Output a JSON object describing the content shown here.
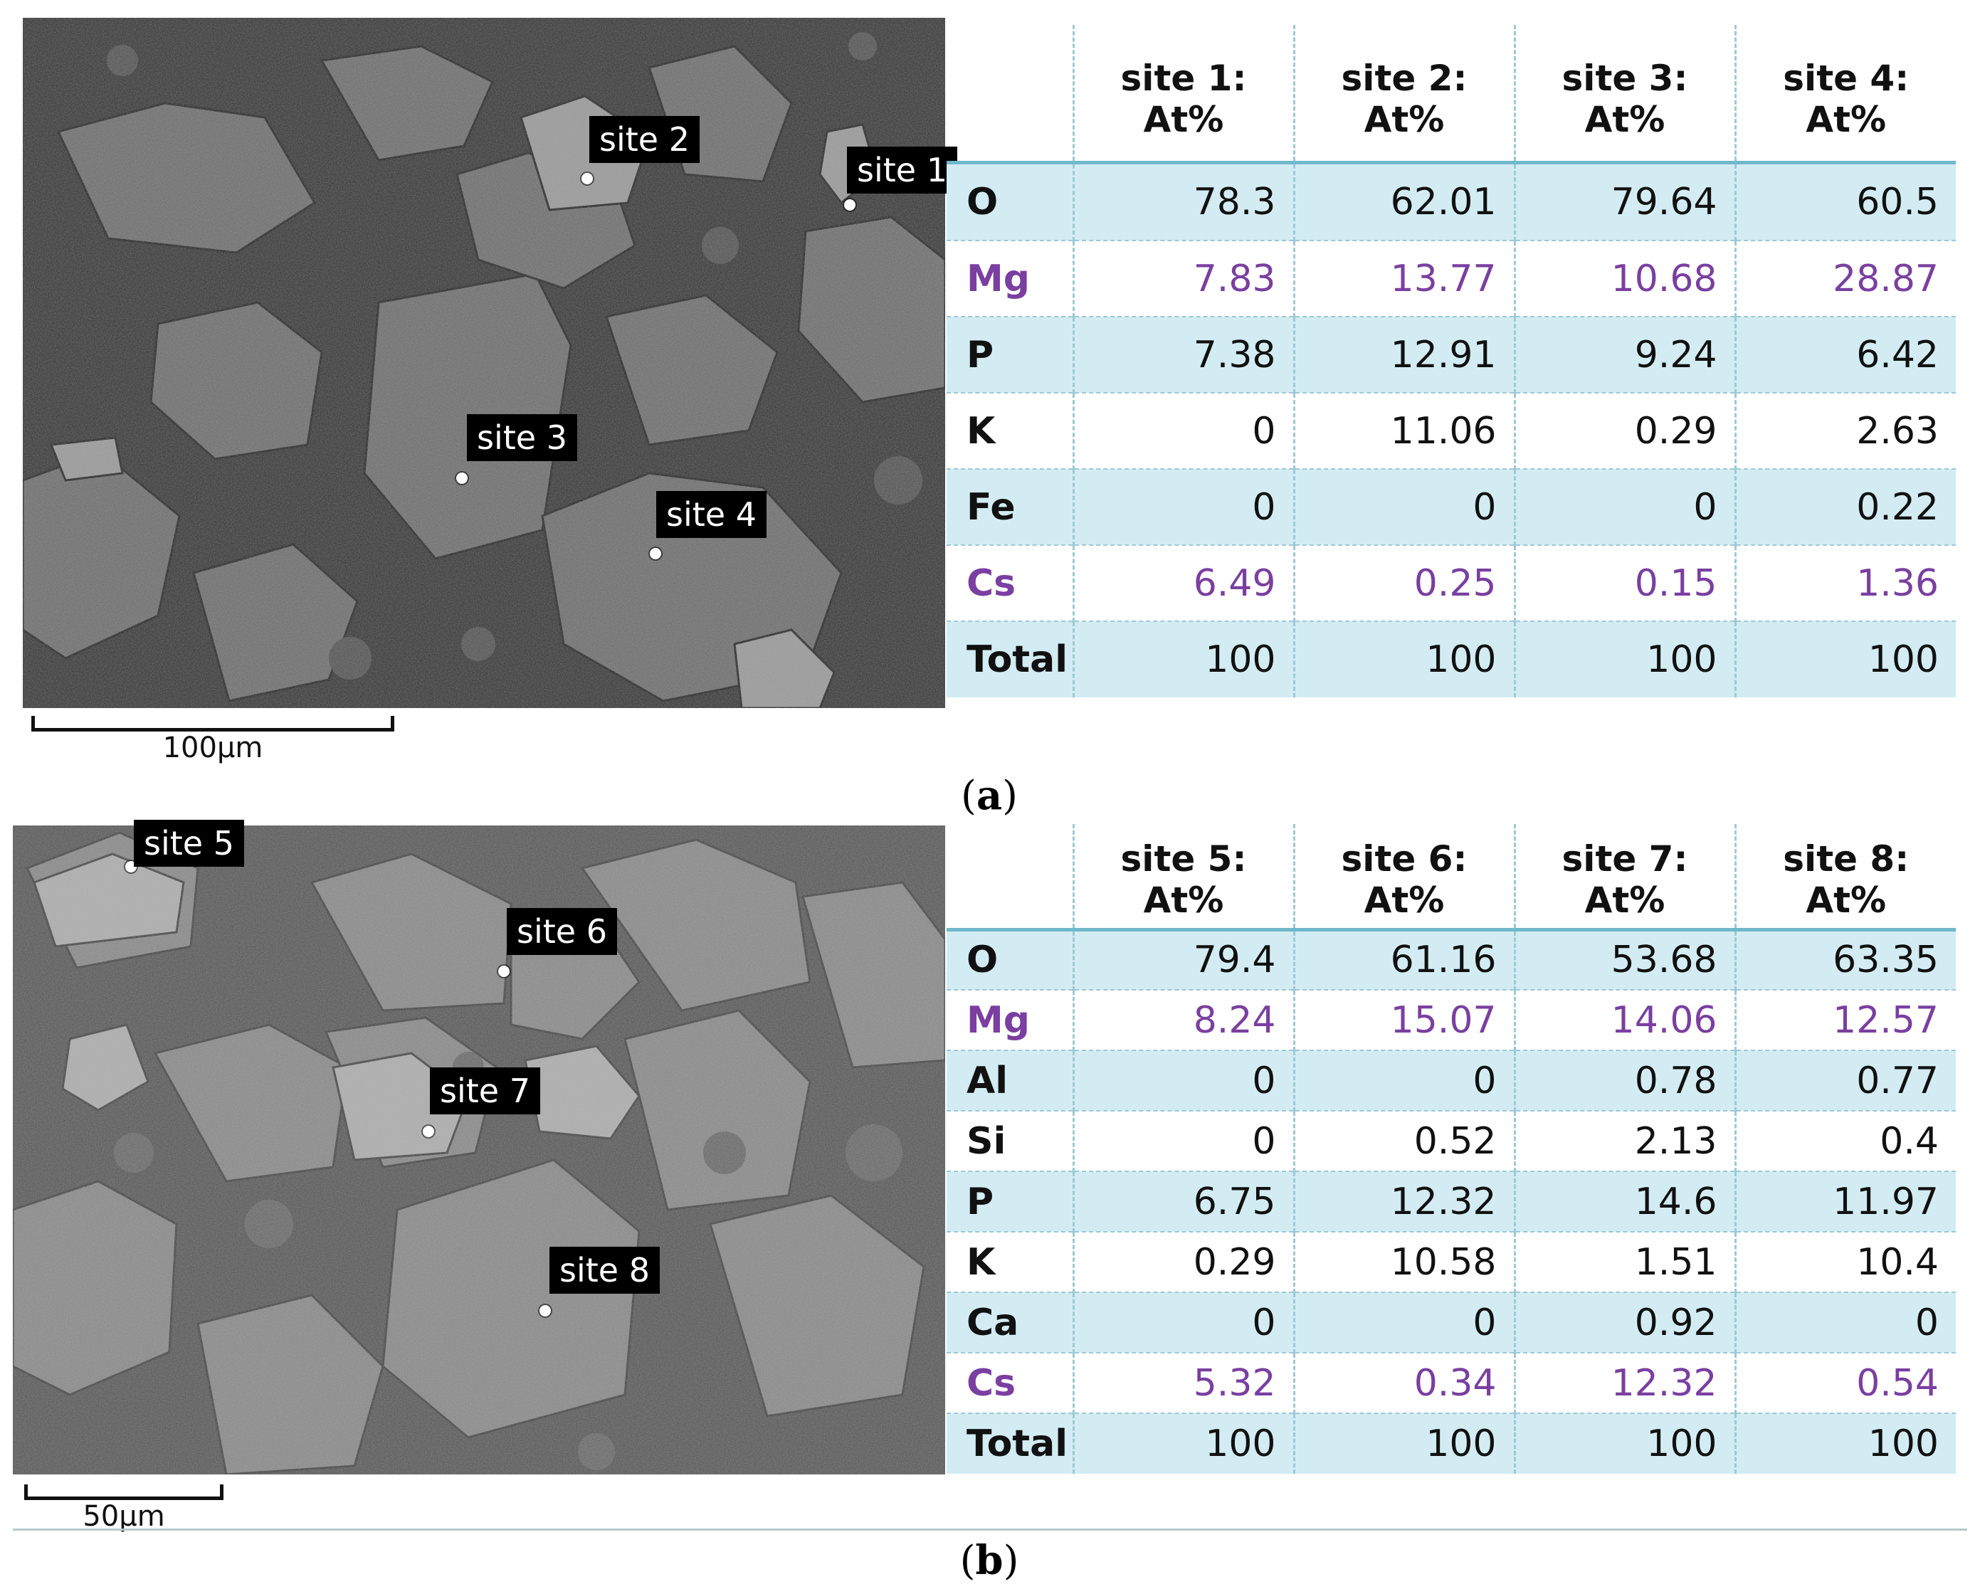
{
  "panels": [
    {
      "id": "a",
      "label_letter": "a",
      "scale_bar": "100μm",
      "sites": [
        {
          "label": "site 1"
        },
        {
          "label": "site 2"
        },
        {
          "label": "site 3"
        },
        {
          "label": "site 4"
        }
      ],
      "table": {
        "columns": [
          "site 1: At%",
          "site 2: At%",
          "site 3: At%",
          "site 4: At%"
        ],
        "rows": [
          {
            "element": "O",
            "values": [
              "78.3",
              "62.01",
              "79.64",
              "60.5"
            ]
          },
          {
            "element": "Mg",
            "values": [
              "7.83",
              "13.77",
              "10.68",
              "28.87"
            ]
          },
          {
            "element": "P",
            "values": [
              "7.38",
              "12.91",
              "9.24",
              "6.42"
            ]
          },
          {
            "element": "K",
            "values": [
              "0",
              "11.06",
              "0.29",
              "2.63"
            ]
          },
          {
            "element": "Fe",
            "values": [
              "0",
              "0",
              "0",
              "0.22"
            ]
          },
          {
            "element": "Cs",
            "values": [
              "6.49",
              "0.25",
              "0.15",
              "1.36"
            ]
          },
          {
            "element": "Total",
            "values": [
              "100",
              "100",
              "100",
              "100"
            ]
          }
        ]
      }
    },
    {
      "id": "b",
      "label_letter": "b",
      "scale_bar": "50μm",
      "sites": [
        {
          "label": "site 5"
        },
        {
          "label": "site 6"
        },
        {
          "label": "site 7"
        },
        {
          "label": "site 8"
        }
      ],
      "table": {
        "columns": [
          "site 5: At%",
          "site 6: At%",
          "site 7: At%",
          "site 8: At%"
        ],
        "rows": [
          {
            "element": "O",
            "values": [
              "79.4",
              "61.16",
              "53.68",
              "63.35"
            ]
          },
          {
            "element": "Mg",
            "values": [
              "8.24",
              "15.07",
              "14.06",
              "12.57"
            ]
          },
          {
            "element": "Al",
            "values": [
              "0",
              "0",
              "0.78",
              "0.77"
            ]
          },
          {
            "element": "Si",
            "values": [
              "0",
              "0.52",
              "2.13",
              "0.4"
            ]
          },
          {
            "element": "P",
            "values": [
              "6.75",
              "12.32",
              "14.6",
              "11.97"
            ]
          },
          {
            "element": "K",
            "values": [
              "0.29",
              "10.58",
              "1.51",
              "10.4"
            ]
          },
          {
            "element": "Ca",
            "values": [
              "0",
              "0",
              "0.92",
              "0"
            ]
          },
          {
            "element": "Cs",
            "values": [
              "5.32",
              "0.34",
              "12.32",
              "0.54"
            ]
          },
          {
            "element": "Total",
            "values": [
              "100",
              "100",
              "100",
              "100"
            ]
          }
        ]
      }
    }
  ],
  "colors": {
    "row_shade": "#d3ecf3",
    "accent_border": "#6fb8cc",
    "purple_text": "#7a3fa0"
  }
}
